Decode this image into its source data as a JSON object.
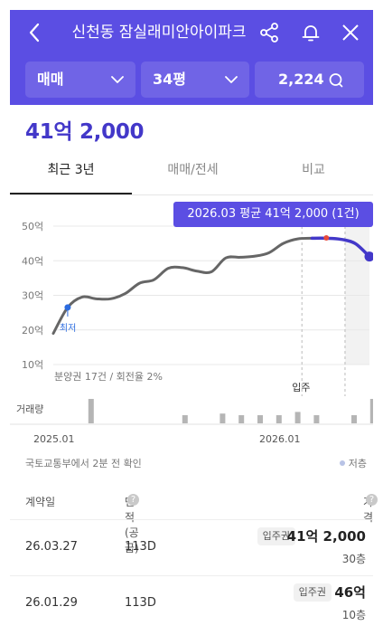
{
  "header": {
    "title": "신천동 잠실래미안아이파크",
    "filters": [
      {
        "label": "매매"
      },
      {
        "label": "34평"
      },
      {
        "label": "2,224"
      }
    ],
    "icons": [
      "back-icon",
      "share-icon",
      "bell-icon",
      "close-icon"
    ]
  },
  "price": "41억 2,000",
  "tabs": [
    {
      "label": "최근 3년",
      "active": true
    },
    {
      "label": "매매/전세",
      "active": false
    },
    {
      "label": "비교",
      "active": false
    }
  ],
  "tooltip": "2026.03 평균 41억 2,000 (1건)",
  "chart_data": {
    "type": "line",
    "y_ticks": [
      "50억",
      "40억",
      "30억",
      "20억",
      "10억"
    ],
    "ylim": [
      10,
      50
    ],
    "x_ticks": [
      "2025.01",
      "2026.01"
    ],
    "series": [
      {
        "color": "#666666",
        "x": [
          0,
          1,
          2,
          3,
          4,
          5,
          6,
          7,
          8,
          9,
          10,
          11,
          12,
          13,
          14,
          15,
          16,
          17,
          18
        ],
        "y": [
          19,
          26.5,
          29.5,
          29,
          29,
          30.5,
          33.5,
          34.5,
          37.8,
          38,
          37,
          36.8,
          40.8,
          41,
          41.3,
          42.3,
          45,
          46.3,
          46.5
        ]
      },
      {
        "color": "#4338c9",
        "x": [
          18,
          19,
          20,
          21,
          22
        ],
        "y": [
          46.5,
          46.5,
          46.2,
          45,
          41.2
        ]
      }
    ],
    "annotations": [
      {
        "label": "최저"
      },
      {
        "label": "입주"
      }
    ],
    "period_note": "분양권 17건 / 회전율 2%",
    "volume_label": "거래량",
    "volume": [
      0,
      3,
      0,
      0,
      0,
      0,
      1,
      0,
      1.2,
      1,
      1,
      1,
      1.4,
      1,
      0,
      1,
      3,
      1,
      0,
      1
    ]
  },
  "source": {
    "text": "국토교통부에서 2분 전 확인",
    "legend": "저층",
    "legend_color": "#b8c3e6"
  },
  "table": {
    "headers": [
      "계약일",
      "면적(공급)",
      "가격"
    ],
    "rows": [
      {
        "date": "26.03.27",
        "area": "113D",
        "badge": "입주권",
        "price": "41억 2,000",
        "floor": "30층"
      },
      {
        "date": "26.01.29",
        "area": "113D",
        "badge": "입주권",
        "price": "46억",
        "floor": "10층"
      }
    ]
  },
  "colors": {
    "brand": "#5b4ee3",
    "accent": "#4338c9",
    "highlight": "#e84a3a"
  }
}
